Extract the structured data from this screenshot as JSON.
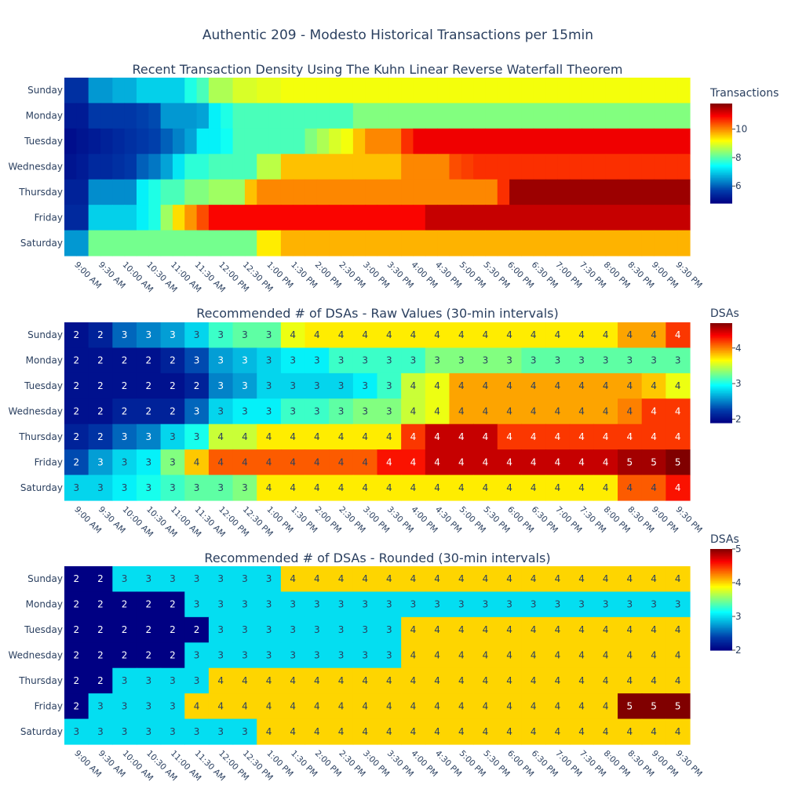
{
  "title": "Authentic 209 - Modesto Historical Transactions per 15min",
  "days": [
    "Sunday",
    "Monday",
    "Tuesday",
    "Wednesday",
    "Thursday",
    "Friday",
    "Saturday"
  ],
  "time_labels": [
    "9:00 AM",
    "9:30 AM",
    "10:00 AM",
    "10:30 AM",
    "11:00 AM",
    "11:30 AM",
    "12:00 PM",
    "12:30 PM",
    "1:00 PM",
    "1:30 PM",
    "2:00 PM",
    "2:30 PM",
    "3:00 PM",
    "3:30 PM",
    "4:00 PM",
    "4:30 PM",
    "5:00 PM",
    "5:30 PM",
    "6:00 PM",
    "6:30 PM",
    "7:00 PM",
    "7:30 PM",
    "8:00 PM",
    "8:30 PM",
    "9:00 PM",
    "9:30 PM"
  ],
  "chart_data": [
    {
      "type": "heatmap",
      "title": "Recent Transaction Density Using The Kuhn Linear Reverse Waterfall Theorem",
      "colorbar_title": "Transactions",
      "colorbar_ticks": [
        6,
        8,
        10
      ],
      "zmin": 4.8,
      "zmax": 11.8,
      "interval": "15min",
      "x_count": 52,
      "y": [
        "Sunday",
        "Monday",
        "Tuesday",
        "Wednesday",
        "Thursday",
        "Friday",
        "Saturday"
      ],
      "z": [
        [
          5.5,
          5.5,
          6.5,
          6.5,
          6.7,
          6.7,
          7,
          7,
          7,
          7,
          7.6,
          7.9,
          8.6,
          8.6,
          8.9,
          8.9,
          9,
          9,
          9.1,
          9.1,
          9.1,
          9.1,
          9.1,
          9.1,
          9.1,
          9.1,
          9.1,
          9.1,
          9.1,
          9.1,
          9.1,
          9.1,
          9.1,
          9.1,
          9.1,
          9.1,
          9.1,
          9.1,
          9.1,
          9.1,
          9.1,
          9.1,
          9.1,
          9.1,
          9.1,
          9.1,
          9.1,
          9.1,
          9.1,
          9.1,
          9.1,
          9.1
        ],
        [
          5.2,
          5.2,
          5.6,
          5.6,
          5.6,
          5.6,
          5.7,
          5.8,
          6.5,
          6.5,
          6.5,
          6.6,
          7.3,
          7.6,
          7.9,
          7.9,
          7.9,
          7.9,
          7.9,
          7.9,
          7.9,
          7.9,
          7.9,
          7.9,
          8.3,
          8.3,
          8.3,
          8.3,
          8.3,
          8.3,
          8.3,
          8.3,
          8.3,
          8.3,
          8.3,
          8.3,
          8.3,
          8.3,
          8.3,
          8.3,
          8.3,
          8.3,
          8.3,
          8.3,
          8.3,
          8.3,
          8.3,
          8.3,
          8.3,
          8.3,
          8.3,
          8.3
        ],
        [
          5.0,
          5.1,
          5.2,
          5.3,
          5.4,
          5.5,
          5.6,
          5.7,
          6.0,
          6.3,
          6.6,
          7.3,
          7.3,
          7.5,
          7.9,
          7.9,
          7.9,
          7.9,
          7.9,
          7.9,
          8.3,
          8.6,
          8.9,
          9.1,
          9.6,
          10,
          10,
          10,
          10.6,
          11,
          11,
          11,
          11,
          11,
          11,
          11,
          11,
          11,
          11,
          11,
          11,
          11,
          11,
          11,
          11,
          11,
          11,
          11,
          11,
          11,
          11,
          11
        ],
        [
          5.1,
          5.2,
          5.4,
          5.4,
          5.5,
          5.6,
          6.0,
          6.2,
          6.6,
          7.2,
          7.7,
          7.7,
          7.9,
          7.9,
          7.9,
          7.9,
          8.7,
          8.7,
          9.6,
          9.6,
          9.6,
          9.6,
          9.6,
          9.6,
          9.6,
          9.6,
          9.6,
          9.6,
          10,
          10,
          10,
          10,
          10.4,
          10.5,
          10.6,
          10.6,
          10.6,
          10.6,
          10.6,
          10.6,
          10.6,
          10.6,
          10.6,
          10.6,
          10.6,
          10.6,
          10.6,
          10.6,
          10.6,
          10.6,
          10.6,
          10.6
        ],
        [
          5.3,
          5.3,
          6.4,
          6.4,
          6.4,
          6.4,
          7.3,
          7.6,
          7.9,
          7.9,
          8.3,
          8.3,
          8.5,
          8.5,
          8.5,
          9.6,
          10,
          10,
          10,
          10,
          10,
          10,
          10,
          10,
          10,
          10,
          10,
          10,
          10,
          10,
          10,
          10,
          10,
          10,
          10,
          10,
          10.6,
          11.6,
          11.6,
          11.6,
          11.6,
          11.6,
          11.6,
          11.6,
          11.6,
          11.6,
          11.6,
          11.6,
          11.6,
          11.6,
          11.6,
          11.6
        ],
        [
          5.4,
          5.4,
          7.0,
          7.0,
          7.0,
          7.0,
          7.3,
          7.6,
          8.5,
          9.4,
          9.9,
          10.4,
          10.9,
          10.9,
          10.9,
          10.9,
          10.9,
          10.9,
          10.9,
          10.9,
          10.9,
          10.9,
          10.9,
          10.9,
          10.9,
          10.9,
          10.9,
          10.9,
          10.9,
          10.9,
          11.3,
          11.3,
          11.3,
          11.3,
          11.3,
          11.3,
          11.3,
          11.3,
          11.3,
          11.3,
          11.3,
          11.3,
          11.3,
          11.3,
          11.3,
          11.3,
          11.3,
          11.3,
          11.3,
          11.3,
          11.3,
          11.3
        ],
        [
          6.5,
          6.5,
          8.2,
          8.2,
          8.2,
          8.2,
          8.2,
          8.2,
          8.2,
          8.2,
          8.2,
          8.2,
          8.2,
          8.2,
          8.2,
          8.2,
          9.3,
          9.3,
          9.7,
          9.7,
          9.7,
          9.7,
          9.7,
          9.7,
          9.7,
          9.7,
          9.7,
          9.7,
          9.7,
          9.7,
          9.7,
          9.7,
          9.7,
          9.7,
          9.7,
          9.7,
          9.7,
          9.7,
          9.7,
          9.7,
          9.7,
          9.7,
          9.7,
          9.7,
          9.7,
          9.7,
          9.7,
          9.7,
          9.7,
          9.7,
          9.7,
          9.7
        ]
      ]
    },
    {
      "type": "heatmap",
      "title": "Recommended # of DSAs - Raw Values (30-min intervals)",
      "colorbar_title": "DSAs",
      "colorbar_ticks": [
        2,
        3,
        4
      ],
      "zmin": 1.9,
      "zmax": 4.7,
      "interval": "30min",
      "y": [
        "Sunday",
        "Monday",
        "Tuesday",
        "Wednesday",
        "Thursday",
        "Friday",
        "Saturday"
      ],
      "text": [
        [
          "2",
          "2",
          "3",
          "3",
          "3",
          "3",
          "3",
          "3",
          "3",
          "4",
          "4",
          "4",
          "4",
          "4",
          "4",
          "4",
          "4",
          "4",
          "4",
          "4",
          "4",
          "4",
          "4",
          "4",
          "4",
          "4"
        ],
        [
          "2",
          "2",
          "2",
          "2",
          "2",
          "3",
          "3",
          "3",
          "3",
          "3",
          "3",
          "3",
          "3",
          "3",
          "3",
          "3",
          "3",
          "3",
          "3",
          "3",
          "3",
          "3",
          "3",
          "3",
          "3",
          "3"
        ],
        [
          "2",
          "2",
          "2",
          "2",
          "2",
          "2",
          "3",
          "3",
          "3",
          "3",
          "3",
          "3",
          "3",
          "3",
          "4",
          "4",
          "4",
          "4",
          "4",
          "4",
          "4",
          "4",
          "4",
          "4",
          "4",
          "4"
        ],
        [
          "2",
          "2",
          "2",
          "2",
          "2",
          "3",
          "3",
          "3",
          "3",
          "3",
          "3",
          "3",
          "3",
          "3",
          "4",
          "4",
          "4",
          "4",
          "4",
          "4",
          "4",
          "4",
          "4",
          "4",
          "4",
          "4"
        ],
        [
          "2",
          "2",
          "3",
          "3",
          "3",
          "3",
          "4",
          "4",
          "4",
          "4",
          "4",
          "4",
          "4",
          "4",
          "4",
          "4",
          "4",
          "4",
          "4",
          "4",
          "4",
          "4",
          "4",
          "4",
          "4",
          "4"
        ],
        [
          "2",
          "3",
          "3",
          "3",
          "3",
          "4",
          "4",
          "4",
          "4",
          "4",
          "4",
          "4",
          "4",
          "4",
          "4",
          "4",
          "4",
          "4",
          "4",
          "4",
          "4",
          "4",
          "4",
          "5",
          "5",
          "5"
        ],
        [
          "3",
          "3",
          "3",
          "3",
          "3",
          "3",
          "3",
          "3",
          "4",
          "4",
          "4",
          "4",
          "4",
          "4",
          "4",
          "4",
          "4",
          "4",
          "4",
          "4",
          "4",
          "4",
          "4",
          "4",
          "4",
          "4"
        ]
      ],
      "z": [
        [
          2.0,
          2.1,
          2.4,
          2.5,
          2.6,
          2.8,
          3.1,
          3.2,
          3.2,
          3.6,
          3.7,
          3.7,
          3.7,
          3.7,
          3.7,
          3.7,
          3.7,
          3.7,
          3.7,
          3.7,
          3.7,
          3.7,
          3.7,
          3.9,
          3.9,
          4.2
        ],
        [
          2.0,
          2.0,
          2.0,
          2.0,
          2.1,
          2.3,
          2.6,
          2.7,
          2.8,
          2.9,
          2.9,
          3.1,
          3.1,
          3.1,
          3.1,
          3.3,
          3.3,
          3.3,
          3.3,
          3.2,
          3.2,
          3.2,
          3.2,
          3.2,
          3.2,
          3.2
        ],
        [
          2.0,
          2.0,
          2.0,
          2.0,
          2.0,
          2.1,
          2.5,
          2.6,
          2.8,
          2.8,
          2.8,
          2.8,
          2.9,
          3.1,
          3.5,
          3.6,
          3.9,
          3.9,
          3.9,
          3.9,
          3.9,
          3.9,
          3.9,
          3.9,
          3.8,
          3.6
        ],
        [
          2.0,
          2.0,
          2.1,
          2.1,
          2.1,
          2.4,
          2.8,
          2.9,
          2.9,
          3.1,
          3.1,
          3.2,
          3.3,
          3.3,
          3.5,
          3.6,
          3.9,
          3.9,
          3.9,
          3.9,
          3.9,
          3.9,
          3.9,
          4.0,
          4.2,
          4.2
        ],
        [
          2.1,
          2.2,
          2.4,
          2.5,
          2.8,
          3.0,
          3.5,
          3.5,
          3.7,
          3.7,
          3.7,
          3.7,
          3.7,
          3.7,
          4.2,
          4.5,
          4.5,
          4.5,
          4.2,
          4.2,
          4.2,
          4.2,
          4.2,
          4.2,
          4.2,
          4.2
        ],
        [
          2.3,
          2.6,
          2.8,
          2.9,
          3.3,
          3.8,
          4.1,
          4.1,
          4.1,
          4.1,
          4.1,
          4.1,
          4.1,
          4.3,
          4.3,
          4.5,
          4.5,
          4.5,
          4.5,
          4.5,
          4.5,
          4.5,
          4.5,
          4.6,
          4.6,
          4.7
        ],
        [
          2.8,
          2.8,
          2.9,
          3.0,
          3.1,
          3.2,
          3.2,
          3.3,
          3.7,
          3.7,
          3.7,
          3.7,
          3.7,
          3.7,
          3.7,
          3.7,
          3.7,
          3.7,
          3.7,
          3.7,
          3.7,
          3.7,
          3.7,
          4.1,
          4.1,
          4.3
        ]
      ]
    },
    {
      "type": "heatmap",
      "title": "Recommended # of DSAs - Rounded (30-min intervals)",
      "colorbar_title": "DSAs",
      "colorbar_ticks": [
        2,
        3,
        4,
        5
      ],
      "zmin": 2,
      "zmax": 5,
      "interval": "30min",
      "y": [
        "Sunday",
        "Monday",
        "Tuesday",
        "Wednesday",
        "Thursday",
        "Friday",
        "Saturday"
      ],
      "text": [
        [
          "2",
          "2",
          "3",
          "3",
          "3",
          "3",
          "3",
          "3",
          "3",
          "4",
          "4",
          "4",
          "4",
          "4",
          "4",
          "4",
          "4",
          "4",
          "4",
          "4",
          "4",
          "4",
          "4",
          "4",
          "4",
          "4"
        ],
        [
          "2",
          "2",
          "2",
          "2",
          "2",
          "3",
          "3",
          "3",
          "3",
          "3",
          "3",
          "3",
          "3",
          "3",
          "3",
          "3",
          "3",
          "3",
          "3",
          "3",
          "3",
          "3",
          "3",
          "3",
          "3",
          "3"
        ],
        [
          "2",
          "2",
          "2",
          "2",
          "2",
          "2",
          "3",
          "3",
          "3",
          "3",
          "3",
          "3",
          "3",
          "3",
          "4",
          "4",
          "4",
          "4",
          "4",
          "4",
          "4",
          "4",
          "4",
          "4",
          "4",
          "4"
        ],
        [
          "2",
          "2",
          "2",
          "2",
          "2",
          "3",
          "3",
          "3",
          "3",
          "3",
          "3",
          "3",
          "3",
          "3",
          "4",
          "4",
          "4",
          "4",
          "4",
          "4",
          "4",
          "4",
          "4",
          "4",
          "4",
          "4"
        ],
        [
          "2",
          "2",
          "3",
          "3",
          "3",
          "3",
          "4",
          "4",
          "4",
          "4",
          "4",
          "4",
          "4",
          "4",
          "4",
          "4",
          "4",
          "4",
          "4",
          "4",
          "4",
          "4",
          "4",
          "4",
          "4",
          "4"
        ],
        [
          "2",
          "3",
          "3",
          "3",
          "3",
          "4",
          "4",
          "4",
          "4",
          "4",
          "4",
          "4",
          "4",
          "4",
          "4",
          "4",
          "4",
          "4",
          "4",
          "4",
          "4",
          "4",
          "4",
          "5",
          "5",
          "5"
        ],
        [
          "3",
          "3",
          "3",
          "3",
          "3",
          "3",
          "3",
          "3",
          "4",
          "4",
          "4",
          "4",
          "4",
          "4",
          "4",
          "4",
          "4",
          "4",
          "4",
          "4",
          "4",
          "4",
          "4",
          "4",
          "4",
          "4"
        ]
      ],
      "z": [
        [
          2,
          2,
          3,
          3,
          3,
          3,
          3,
          3,
          3,
          4,
          4,
          4,
          4,
          4,
          4,
          4,
          4,
          4,
          4,
          4,
          4,
          4,
          4,
          4,
          4,
          4
        ],
        [
          2,
          2,
          2,
          2,
          2,
          3,
          3,
          3,
          3,
          3,
          3,
          3,
          3,
          3,
          3,
          3,
          3,
          3,
          3,
          3,
          3,
          3,
          3,
          3,
          3,
          3
        ],
        [
          2,
          2,
          2,
          2,
          2,
          2,
          3,
          3,
          3,
          3,
          3,
          3,
          3,
          3,
          4,
          4,
          4,
          4,
          4,
          4,
          4,
          4,
          4,
          4,
          4,
          4
        ],
        [
          2,
          2,
          2,
          2,
          2,
          3,
          3,
          3,
          3,
          3,
          3,
          3,
          3,
          3,
          4,
          4,
          4,
          4,
          4,
          4,
          4,
          4,
          4,
          4,
          4,
          4
        ],
        [
          2,
          2,
          3,
          3,
          3,
          3,
          4,
          4,
          4,
          4,
          4,
          4,
          4,
          4,
          4,
          4,
          4,
          4,
          4,
          4,
          4,
          4,
          4,
          4,
          4,
          4
        ],
        [
          2,
          3,
          3,
          3,
          3,
          4,
          4,
          4,
          4,
          4,
          4,
          4,
          4,
          4,
          4,
          4,
          4,
          4,
          4,
          4,
          4,
          4,
          4,
          5,
          5,
          5
        ],
        [
          3,
          3,
          3,
          3,
          3,
          3,
          3,
          3,
          4,
          4,
          4,
          4,
          4,
          4,
          4,
          4,
          4,
          4,
          4,
          4,
          4,
          4,
          4,
          4,
          4,
          4
        ]
      ]
    }
  ]
}
